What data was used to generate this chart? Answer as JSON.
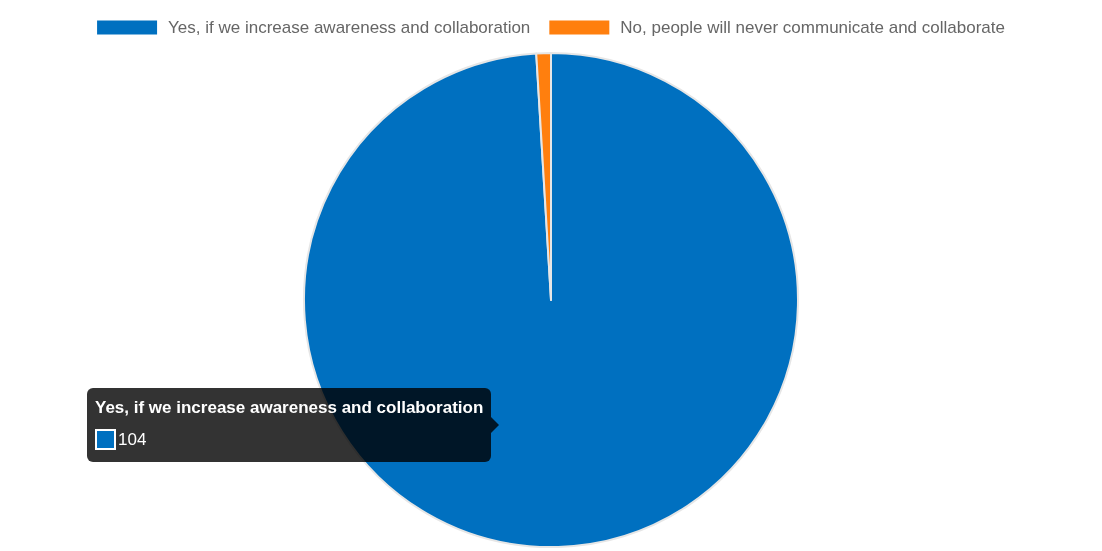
{
  "chart_data": {
    "type": "pie",
    "categories": [
      "Yes, if we increase awareness and collaboration",
      "No, people will never communicate and collaborate"
    ],
    "values": [
      104,
      1
    ],
    "colors": [
      "#0070c0",
      "#ff7f0e"
    ],
    "value_labels": [
      "104",
      null
    ],
    "legend": "top"
  }
}
